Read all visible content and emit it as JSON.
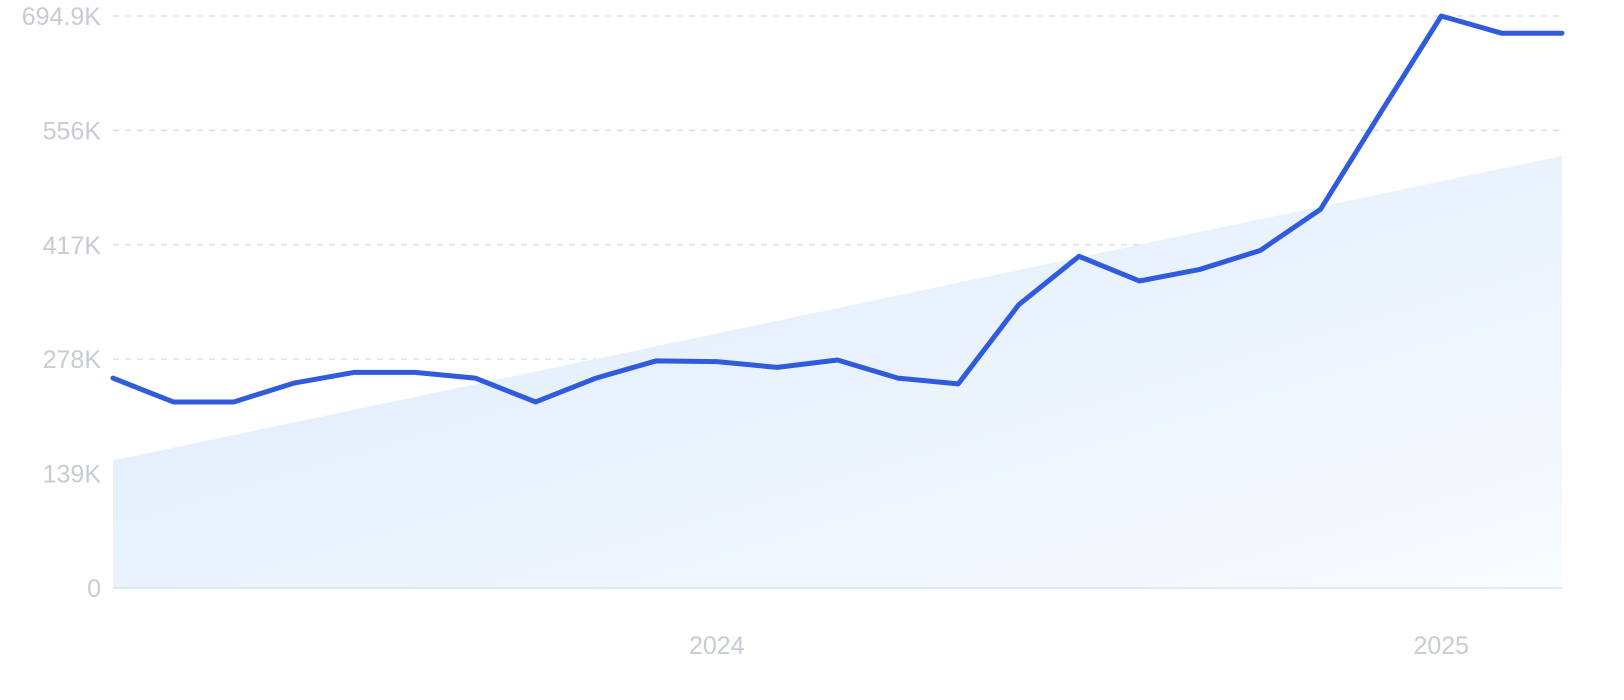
{
  "chart_data": {
    "type": "line",
    "x_tick_labels": [
      "2024",
      "2025"
    ],
    "y_tick_labels": [
      "0",
      "139K",
      "278K",
      "417K",
      "556K",
      "694.9K"
    ],
    "y_tick_values": [
      0,
      139000,
      278000,
      417000,
      556000,
      694900
    ],
    "ylim": [
      0,
      694900
    ],
    "xlim": [
      "2023-03",
      "2025-03"
    ],
    "grid": true,
    "grid_style": "dashed horizontal",
    "series": [
      {
        "color": "#2f5bdc",
        "x": [
          "2023-03",
          "2023-04",
          "2023-05",
          "2023-06",
          "2023-07",
          "2023-08",
          "2023-09",
          "2023-10",
          "2023-11",
          "2023-12",
          "2024-01",
          "2024-02",
          "2024-03",
          "2024-04",
          "2024-05",
          "2024-06",
          "2024-07",
          "2024-08",
          "2024-09",
          "2024-10",
          "2024-11",
          "2024-12",
          "2025-01",
          "2025-02",
          "2025-03"
        ],
        "values": [
          255000,
          226000,
          226000,
          249000,
          262000,
          262000,
          255000,
          226000,
          255000,
          276000,
          275000,
          268000,
          277000,
          255000,
          248000,
          344000,
          403000,
          373000,
          387000,
          410000,
          460000,
          578000,
          694900,
          674000,
          674000
        ]
      }
    ],
    "trend_area": {
      "color": "#dfeefc",
      "start_value": 155000,
      "end_value": 525000
    }
  }
}
